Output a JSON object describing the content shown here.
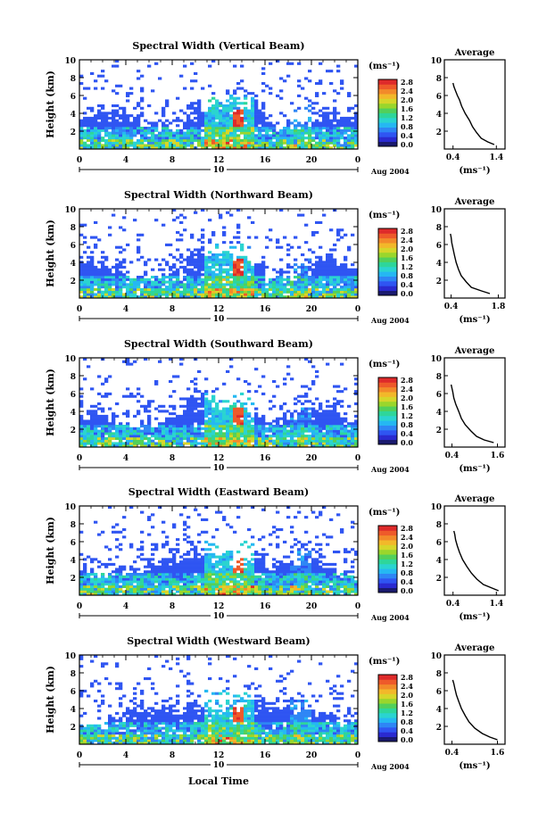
{
  "figure": {
    "footer_label": "Local Time"
  },
  "colors": {
    "colorbar": [
      "#1a1a6e",
      "#2a2ad0",
      "#2f55f2",
      "#2e86f5",
      "#25b8f2",
      "#2ad4d0",
      "#2ed69a",
      "#52d05a",
      "#9ad62c",
      "#d6d62a",
      "#f2b82a",
      "#f28a2a",
      "#ee5a2a",
      "#de2a2a"
    ],
    "axis": "#000000"
  },
  "chart_data": [
    {
      "type": "heatmap",
      "title": "Spectral Width (Vertical Beam)",
      "ylabel": "Height (km)",
      "ylim": [
        0,
        10
      ],
      "yticks": [
        "2",
        "4",
        "6",
        "8",
        "10"
      ],
      "xlim": [
        0,
        24
      ],
      "xticks": [
        "0",
        "4",
        "8",
        "12",
        "16",
        "20",
        "0"
      ],
      "date_day": "10",
      "date_month_year": "Aug 2004",
      "colorbar": {
        "unit": "(ms⁻¹)",
        "ticks": [
          "0.0",
          "0.4",
          "0.8",
          "1.2",
          "1.6",
          "2.0",
          "2.4",
          "2.8"
        ],
        "range": [
          0,
          2.8
        ]
      },
      "profile": {
        "title": "Average",
        "xlabel": "(ms⁻¹)",
        "xticks": [
          "0.4",
          "1.4"
        ],
        "xlim": [
          0.2,
          1.6
        ],
        "yticks": [
          "2",
          "4",
          "6",
          "8",
          "10"
        ],
        "ylim": [
          0,
          10
        ],
        "points": [
          [
            1.35,
            0.5
          ],
          [
            1.2,
            0.8
          ],
          [
            1.05,
            1.2
          ],
          [
            0.95,
            1.8
          ],
          [
            0.85,
            2.5
          ],
          [
            0.78,
            3.2
          ],
          [
            0.68,
            4.0
          ],
          [
            0.6,
            4.8
          ],
          [
            0.55,
            5.5
          ],
          [
            0.5,
            6.0
          ],
          [
            0.46,
            6.5
          ],
          [
            0.42,
            7.0
          ],
          [
            0.4,
            7.4
          ]
        ]
      }
    },
    {
      "type": "heatmap",
      "title": "Spectral Width (Northward Beam)",
      "ylabel": "Height (km)",
      "ylim": [
        0,
        10
      ],
      "yticks": [
        "2",
        "4",
        "6",
        "8",
        "10"
      ],
      "xlim": [
        0,
        24
      ],
      "xticks": [
        "0",
        "4",
        "8",
        "12",
        "16",
        "20",
        "0"
      ],
      "date_day": "10",
      "date_month_year": "Aug 2004",
      "colorbar": {
        "unit": "(ms⁻¹)",
        "ticks": [
          "0.0",
          "0.4",
          "0.8",
          "1.2",
          "1.6",
          "2.0",
          "2.4",
          "2.8"
        ],
        "range": [
          0,
          2.8
        ]
      },
      "profile": {
        "title": "Average",
        "xlabel": "(ms⁻¹)",
        "xticks": [
          "0.4",
          "1.8"
        ],
        "xlim": [
          0.2,
          2.0
        ],
        "yticks": [
          "2",
          "4",
          "6",
          "8",
          "10"
        ],
        "ylim": [
          0,
          10
        ],
        "points": [
          [
            1.55,
            0.5
          ],
          [
            1.3,
            0.8
          ],
          [
            1.0,
            1.2
          ],
          [
            0.85,
            1.8
          ],
          [
            0.7,
            2.5
          ],
          [
            0.62,
            3.2
          ],
          [
            0.55,
            4.0
          ],
          [
            0.5,
            4.8
          ],
          [
            0.46,
            5.5
          ],
          [
            0.42,
            6.2
          ],
          [
            0.4,
            6.8
          ],
          [
            0.38,
            7.2
          ]
        ]
      }
    },
    {
      "type": "heatmap",
      "title": "Spectral Width (Southward Beam)",
      "ylabel": "Height (km)",
      "ylim": [
        0,
        10
      ],
      "yticks": [
        "2",
        "4",
        "6",
        "8",
        "10"
      ],
      "xlim": [
        0,
        24
      ],
      "xticks": [
        "0",
        "4",
        "8",
        "12",
        "16",
        "20",
        "0"
      ],
      "date_day": "10",
      "date_month_year": "Aug 2004",
      "colorbar": {
        "unit": "(ms⁻¹)",
        "ticks": [
          "0.0",
          "0.4",
          "0.8",
          "1.2",
          "1.6",
          "2.0",
          "2.4",
          "2.8"
        ],
        "range": [
          0,
          2.8
        ]
      },
      "profile": {
        "title": "Average",
        "xlabel": "(ms⁻¹)",
        "xticks": [
          "0.4",
          "1.6"
        ],
        "xlim": [
          0.2,
          1.8
        ],
        "yticks": [
          "2",
          "4",
          "6",
          "8",
          "10"
        ],
        "ylim": [
          0,
          10
        ],
        "points": [
          [
            1.5,
            0.5
          ],
          [
            1.25,
            0.8
          ],
          [
            1.05,
            1.2
          ],
          [
            0.9,
            1.8
          ],
          [
            0.75,
            2.5
          ],
          [
            0.65,
            3.2
          ],
          [
            0.58,
            4.0
          ],
          [
            0.5,
            4.8
          ],
          [
            0.45,
            5.5
          ],
          [
            0.42,
            6.2
          ],
          [
            0.38,
            7.0
          ]
        ]
      }
    },
    {
      "type": "heatmap",
      "title": "Spectral Width (Eastward Beam)",
      "ylabel": "Height (km)",
      "ylim": [
        0,
        10
      ],
      "yticks": [
        "2",
        "4",
        "6",
        "8",
        "10"
      ],
      "xlim": [
        0,
        24
      ],
      "xticks": [
        "0",
        "4",
        "8",
        "12",
        "16",
        "20",
        "0"
      ],
      "date_day": "10",
      "date_month_year": "Aug 2004",
      "colorbar": {
        "unit": "(ms⁻¹)",
        "ticks": [
          "0.0",
          "0.4",
          "0.8",
          "1.2",
          "1.6",
          "2.0",
          "2.4",
          "2.8"
        ],
        "range": [
          0,
          2.8
        ]
      },
      "profile": {
        "title": "Average",
        "xlabel": "(ms⁻¹)",
        "xticks": [
          "0.4",
          "1.4"
        ],
        "xlim": [
          0.2,
          1.6
        ],
        "yticks": [
          "2",
          "4",
          "6",
          "8",
          "10"
        ],
        "ylim": [
          0,
          10
        ],
        "points": [
          [
            1.45,
            0.5
          ],
          [
            1.3,
            0.8
          ],
          [
            1.1,
            1.2
          ],
          [
            0.95,
            1.8
          ],
          [
            0.82,
            2.5
          ],
          [
            0.72,
            3.2
          ],
          [
            0.62,
            4.0
          ],
          [
            0.55,
            4.8
          ],
          [
            0.5,
            5.5
          ],
          [
            0.46,
            6.2
          ],
          [
            0.44,
            6.8
          ],
          [
            0.42,
            7.2
          ]
        ]
      }
    },
    {
      "type": "heatmap",
      "title": "Spectral Width (Westward Beam)",
      "ylabel": "Height (km)",
      "ylim": [
        0,
        10
      ],
      "yticks": [
        "2",
        "4",
        "6",
        "8",
        "10"
      ],
      "xlim": [
        0,
        24
      ],
      "xticks": [
        "0",
        "4",
        "8",
        "12",
        "16",
        "20",
        "0"
      ],
      "date_day": "10",
      "date_month_year": "Aug 2004",
      "colorbar": {
        "unit": "(ms⁻¹)",
        "ticks": [
          "0.0",
          "0.4",
          "0.8",
          "1.2",
          "1.6",
          "2.0",
          "2.4",
          "2.8"
        ],
        "range": [
          0,
          2.8
        ]
      },
      "profile": {
        "title": "Average",
        "xlabel": "(ms⁻¹)",
        "xticks": [
          "0.4",
          "1.6"
        ],
        "xlim": [
          0.2,
          1.8
        ],
        "yticks": [
          "2",
          "4",
          "6",
          "8",
          "10"
        ],
        "ylim": [
          0,
          10
        ],
        "points": [
          [
            1.6,
            0.5
          ],
          [
            1.4,
            0.8
          ],
          [
            1.2,
            1.2
          ],
          [
            1.0,
            1.8
          ],
          [
            0.85,
            2.5
          ],
          [
            0.75,
            3.2
          ],
          [
            0.65,
            4.0
          ],
          [
            0.58,
            4.8
          ],
          [
            0.52,
            5.5
          ],
          [
            0.48,
            6.2
          ],
          [
            0.45,
            6.8
          ],
          [
            0.42,
            7.2
          ]
        ]
      }
    }
  ]
}
